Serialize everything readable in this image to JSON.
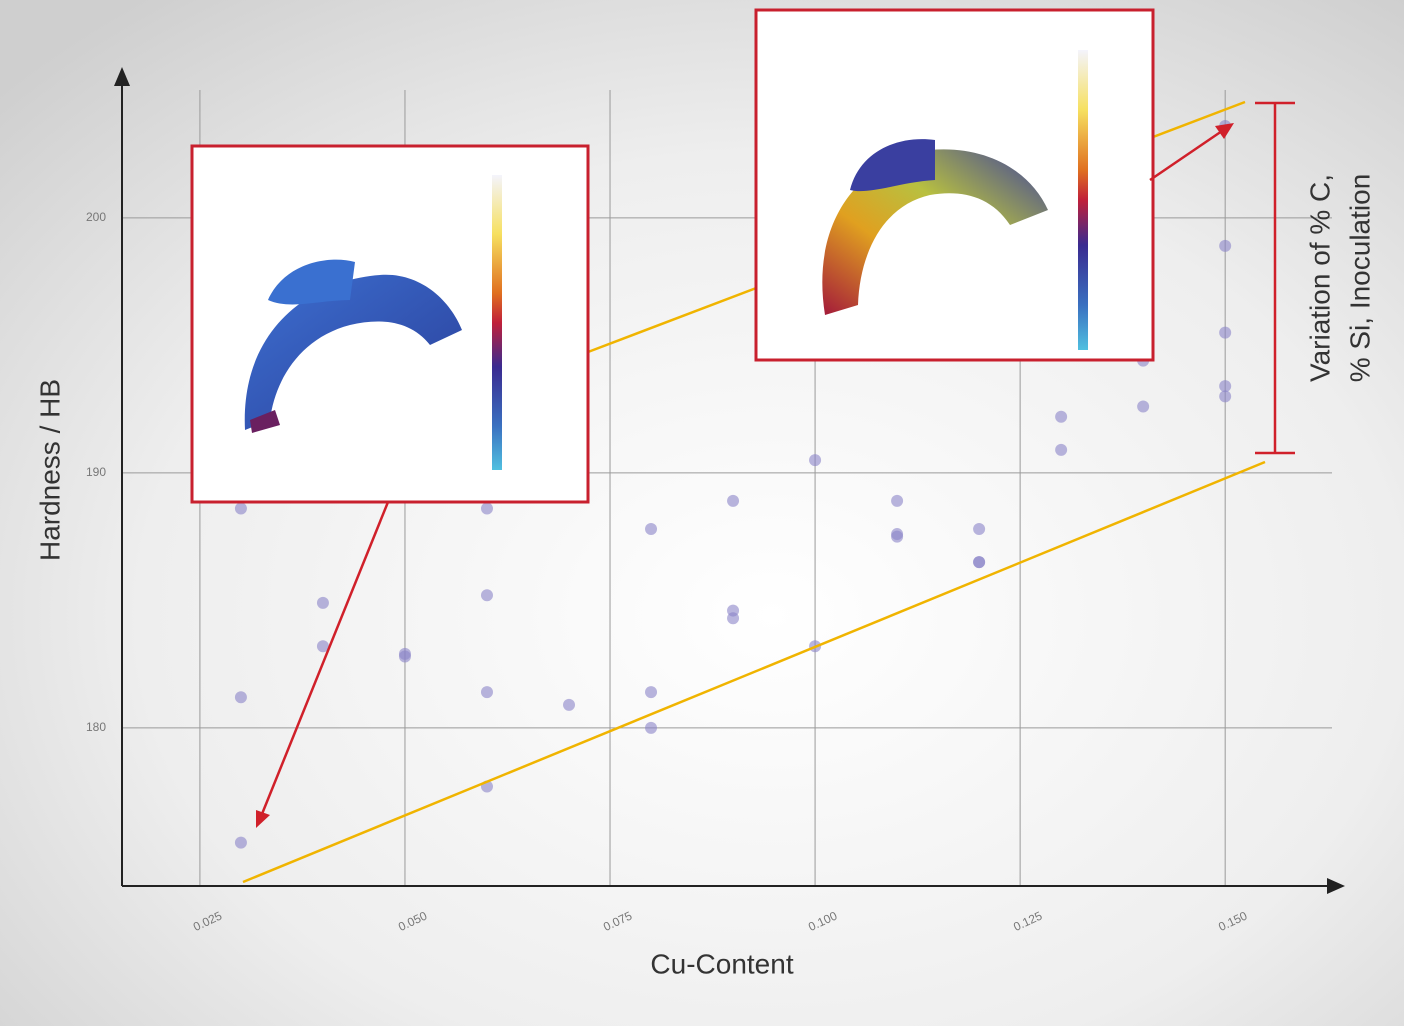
{
  "chart_data": {
    "type": "scatter",
    "x_label": "Cu-Content",
    "y_label": "Hardness / HB",
    "annotation_lines": [
      "Variation of % C,",
      "% Si, Inoculation"
    ],
    "color": "#8a84c8",
    "grid": true,
    "x": [
      0.03,
      0.03,
      0.03,
      0.04,
      0.04,
      0.05,
      0.05,
      0.06,
      0.06,
      0.06,
      0.06,
      0.07,
      0.08,
      0.08,
      0.08,
      0.09,
      0.09,
      0.09,
      0.1,
      0.1,
      0.11,
      0.11,
      0.11,
      0.12,
      0.12,
      0.12,
      0.13,
      0.13,
      0.14,
      0.14,
      0.15,
      0.15,
      0.15,
      0.15,
      0.15
    ],
    "values": [
      175.5,
      181.2,
      188.6,
      184.9,
      183.2,
      182.9,
      182.8,
      188.6,
      185.2,
      181.4,
      177.7,
      180.9,
      187.8,
      181.4,
      180.0,
      188.9,
      184.6,
      184.3,
      190.5,
      183.2,
      188.9,
      187.6,
      187.5,
      187.8,
      186.5,
      186.5,
      192.2,
      190.9,
      192.6,
      194.4,
      203.6,
      198.9,
      195.5,
      193.4,
      193.0
    ],
    "xlim": [
      0.0155,
      0.164
    ],
    "ylim": [
      173.8,
      205.6
    ],
    "xticks": [
      0.025,
      {
        "value": 0.05,
        "label": "0.050"
      },
      0.075,
      {
        "value": 0.1,
        "label": "0.100"
      },
      0.125,
      {
        "value": 0.15,
        "label": "0.150"
      }
    ],
    "yticks": [
      180,
      190,
      200
    ]
  }
}
